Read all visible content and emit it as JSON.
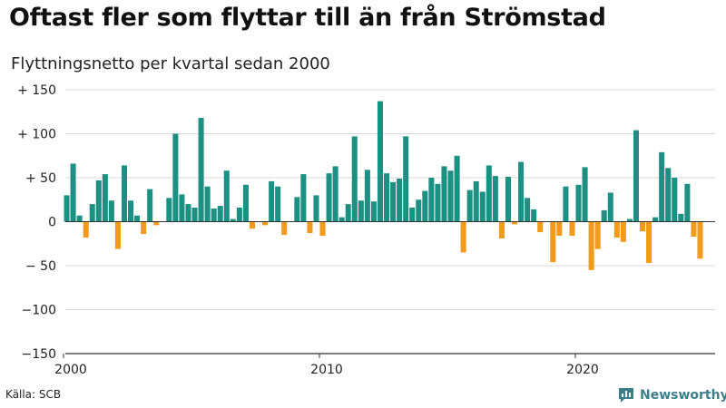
{
  "title": "Oftast fler som flyttar till än från Strömstad",
  "subtitle": "Flyttningsnetto per kvartal sedan 2000",
  "source": "Källa: SCB",
  "brand": {
    "name": "Newsworthy",
    "icon": "bar-chart-logo-icon",
    "color": "#3d7f89"
  },
  "colors": {
    "positive": "#1c9183",
    "negative": "#f19a1c",
    "grid": "#d9d9d9",
    "zero": "#333333"
  },
  "chart_data": {
    "type": "bar",
    "title": "Flyttningsnetto per kvartal sedan 2000",
    "xlabel": "",
    "ylabel": "",
    "ylim": [
      -150,
      150
    ],
    "yticks": [
      {
        "value": 150,
        "label": "+ 150"
      },
      {
        "value": 100,
        "label": "+ 100"
      },
      {
        "value": 50,
        "label": "+  50"
      },
      {
        "value": 0,
        "label": "0"
      },
      {
        "value": -50,
        "label": "− 50"
      },
      {
        "value": -100,
        "label": "−100"
      },
      {
        "value": -150,
        "label": "−150"
      }
    ],
    "xticks": [
      {
        "value": 2000,
        "label": "2000"
      },
      {
        "value": 2010,
        "label": "2010"
      },
      {
        "value": 2020,
        "label": "2020"
      }
    ],
    "x_start": 2000,
    "grid": true,
    "categories": [
      "2000 K1",
      "2000 K2",
      "2000 K3",
      "2000 K4",
      "2001 K1",
      "2001 K2",
      "2001 K3",
      "2001 K4",
      "2002 K1",
      "2002 K2",
      "2002 K3",
      "2002 K4",
      "2003 K1",
      "2003 K2",
      "2003 K3",
      "2003 K4",
      "2004 K1",
      "2004 K2",
      "2004 K3",
      "2004 K4",
      "2005 K1",
      "2005 K2",
      "2005 K3",
      "2005 K4",
      "2006 K1",
      "2006 K2",
      "2006 K3",
      "2006 K4",
      "2007 K1",
      "2007 K2",
      "2007 K3",
      "2007 K4",
      "2008 K1",
      "2008 K2",
      "2008 K3",
      "2008 K4",
      "2009 K1",
      "2009 K2",
      "2009 K3",
      "2009 K4",
      "2010 K1",
      "2010 K2",
      "2010 K3",
      "2010 K4",
      "2011 K1",
      "2011 K2",
      "2011 K3",
      "2011 K4",
      "2012 K1",
      "2012 K2",
      "2012 K3",
      "2012 K4",
      "2013 K1",
      "2013 K2",
      "2013 K3",
      "2013 K4",
      "2014 K1",
      "2014 K2",
      "2014 K3",
      "2014 K4",
      "2015 K1",
      "2015 K2",
      "2015 K3",
      "2015 K4",
      "2016 K1",
      "2016 K2",
      "2016 K3",
      "2016 K4",
      "2017 K1",
      "2017 K2",
      "2017 K3",
      "2017 K4",
      "2018 K1",
      "2018 K2",
      "2018 K3",
      "2018 K4",
      "2019 K1",
      "2019 K2",
      "2019 K3",
      "2019 K4",
      "2020 K1",
      "2020 K2",
      "2020 K3",
      "2020 K4",
      "2021 K1",
      "2021 K2",
      "2021 K3",
      "2021 K4",
      "2022 K1",
      "2022 K2",
      "2022 K3",
      "2022 K4",
      "2023 K1",
      "2023 K2",
      "2023 K3",
      "2023 K4",
      "2024 K1",
      "2024 K2",
      "2024 K3",
      "2024 K4",
      "2025 K1"
    ],
    "values": [
      30,
      66,
      7,
      -18,
      20,
      47,
      54,
      24,
      -31,
      64,
      24,
      7,
      -14,
      37,
      -4,
      0,
      27,
      100,
      31,
      20,
      16,
      118,
      40,
      15,
      18,
      58,
      3,
      16,
      42,
      -8,
      0,
      -4,
      46,
      40,
      -15,
      0,
      28,
      54,
      -13,
      30,
      -16,
      55,
      63,
      5,
      20,
      97,
      24,
      59,
      23,
      137,
      55,
      45,
      49,
      97,
      16,
      25,
      35,
      50,
      43,
      63,
      58,
      75,
      -35,
      36,
      46,
      34,
      64,
      52,
      -19,
      51,
      -3,
      68,
      27,
      14,
      -12,
      0,
      -46,
      -16,
      40,
      -16,
      42,
      62,
      -55,
      -31,
      13,
      33,
      -18,
      -23,
      3,
      104,
      -11,
      -47,
      5,
      79,
      61,
      50,
      9,
      43,
      -17,
      -42,
      0
    ]
  }
}
